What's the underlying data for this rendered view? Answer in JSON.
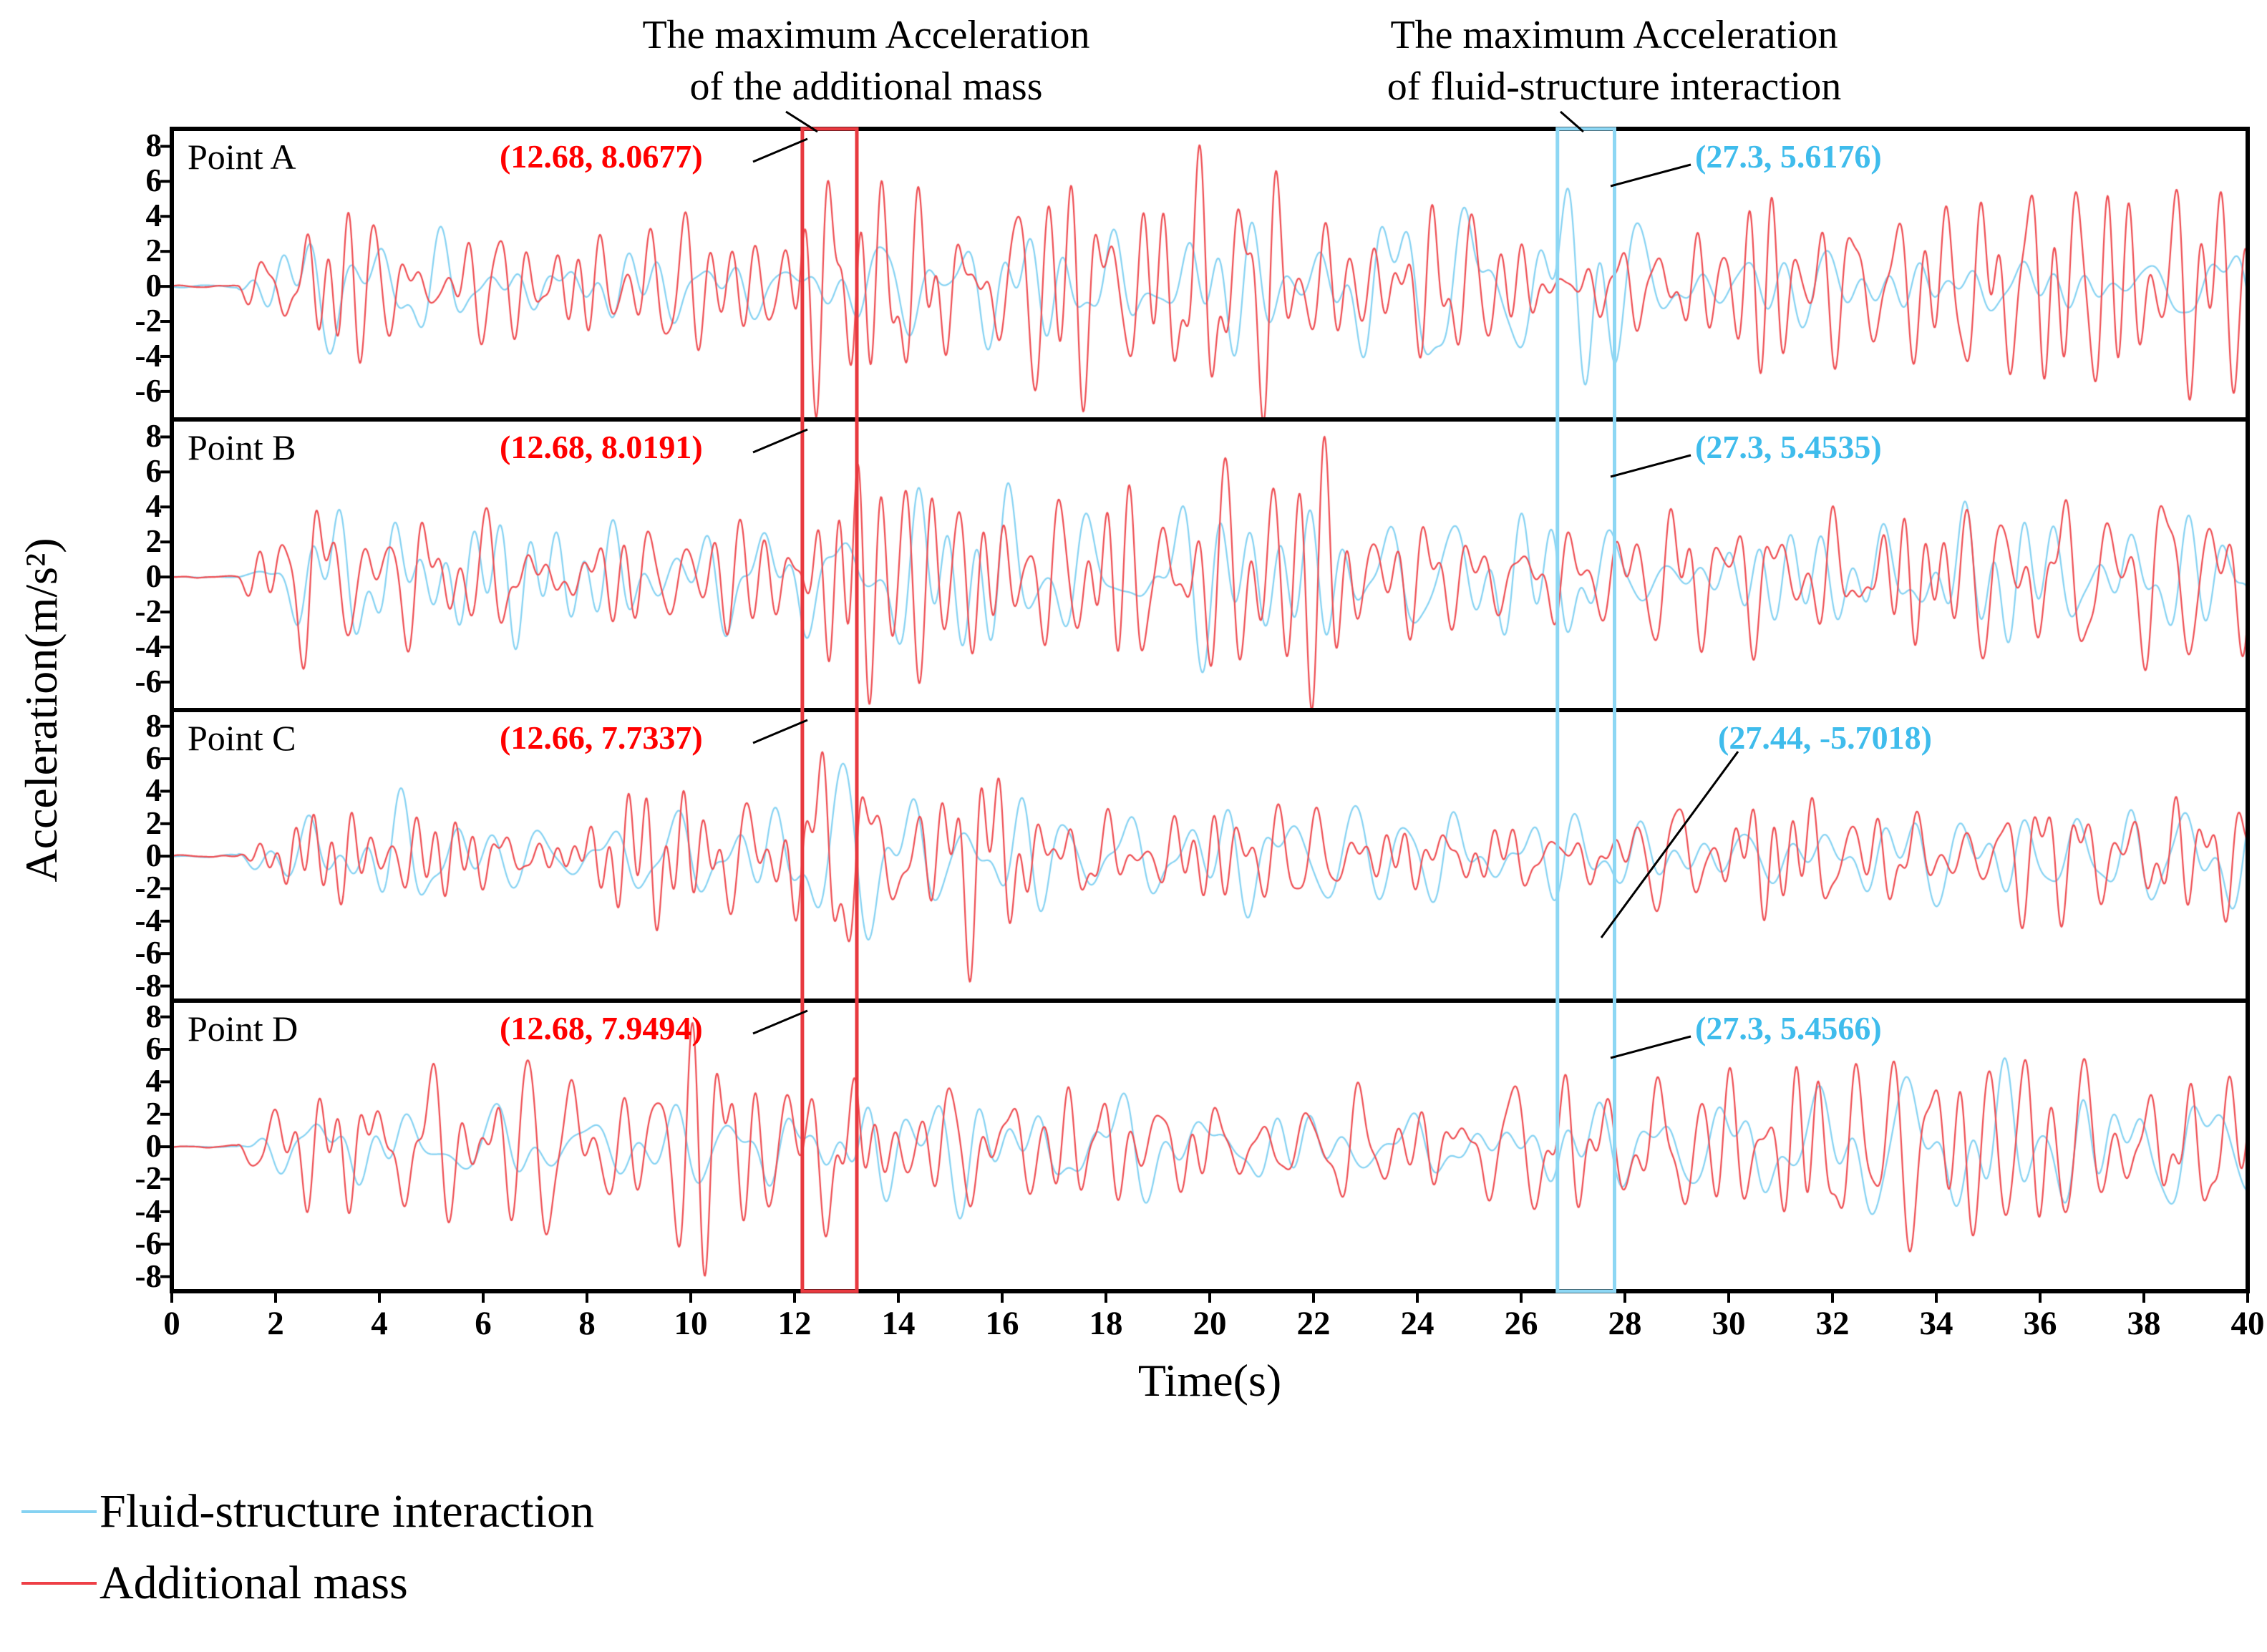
{
  "annotations": {
    "title_additional": "The maximum Acceleration\nof the additional mass",
    "title_fsi": "The maximum Acceleration\nof fluid-structure interaction"
  },
  "colors": {
    "blue_line": "#85d2f2",
    "red_line": "#ee4d52",
    "blue_text": "#3fbcec",
    "red_text": "#ff0000",
    "blue_box": "#8dd7f4",
    "red_box": "#e8393f",
    "axis": "#000000"
  },
  "legend": {
    "items": [
      {
        "label": "Fluid-structure interaction",
        "color": "#85d2f2"
      },
      {
        "label": "Additional mass",
        "color": "#ee3f46"
      }
    ]
  },
  "chart_data": {
    "type": "line",
    "title": "",
    "xlabel": "Time(s)",
    "ylabel": "Acceleration(m/s²)",
    "x_range": [
      0,
      40
    ],
    "xticks": [
      0,
      2,
      4,
      6,
      8,
      10,
      12,
      14,
      16,
      18,
      20,
      22,
      24,
      26,
      28,
      30,
      32,
      34,
      36,
      38,
      40
    ],
    "grid": false,
    "legend": [
      "Fluid-structure interaction",
      "Additional mass"
    ],
    "legend_position": "bottom-left",
    "note": "Four stacked seismic-style acceleration time histories (Points A–D) comparing fluid-structure interaction vs additional-mass models; traces are dense broadband signals (~0 until 1.3 s, then sustained oscillation to 40 s). Exact samples unresolvable; key annotated extrema listed per panel. Regions around t=12.68 s (red box) and t=27.3 s (blue box) are highlighted across all panels.",
    "highlighted_regions": [
      {
        "name": "maximum-of-additional-mass",
        "x0": 12.15,
        "x1": 13.2,
        "color": "#e8393f",
        "label": "The maximum Acceleration of the additional mass"
      },
      {
        "name": "maximum-of-fluid-structure-interaction",
        "x0": 26.7,
        "x1": 27.8,
        "color": "#8dd7f4",
        "label": "The maximum Acceleration of fluid-structure interaction"
      }
    ],
    "panels": [
      {
        "label": "Point A",
        "ylim": [
          -7.6,
          9
        ],
        "yticks": [
          8,
          6,
          4,
          2,
          0,
          -2,
          -4,
          -6
        ],
        "series": [
          {
            "name": "Fluid-structure interaction",
            "color": "#85d2f2",
            "max_point": {
              "x": 27.3,
              "y": 5.6176
            },
            "annotation": "(27.3, 5.6176)"
          },
          {
            "name": "Additional mass",
            "color": "#ee4d52",
            "max_point": {
              "x": 12.68,
              "y": 8.0677
            },
            "annotation": "(12.68, 8.0677)"
          }
        ]
      },
      {
        "label": "Point B",
        "ylim": [
          -7.6,
          9
        ],
        "yticks": [
          8,
          6,
          4,
          2,
          0,
          -2,
          -4,
          -6
        ],
        "series": [
          {
            "name": "Fluid-structure interaction",
            "color": "#85d2f2",
            "max_point": {
              "x": 27.3,
              "y": 5.4535
            },
            "annotation": "(27.3, 5.4535)"
          },
          {
            "name": "Additional mass",
            "color": "#ee4d52",
            "max_point": {
              "x": 12.68,
              "y": 8.0191
            },
            "annotation": "(12.68, 8.0191)"
          }
        ]
      },
      {
        "label": "Point C",
        "ylim": [
          -8.9,
          9
        ],
        "yticks": [
          8,
          6,
          4,
          2,
          0,
          -2,
          -4,
          -6,
          -8
        ],
        "series": [
          {
            "name": "Fluid-structure interaction",
            "color": "#85d2f2",
            "max_point": {
              "x": 27.44,
              "y": -5.7018
            },
            "annotation": "(27.44, -5.7018)"
          },
          {
            "name": "Additional mass",
            "color": "#ee4d52",
            "max_point": {
              "x": 12.66,
              "y": 7.7337
            },
            "annotation": "(12.66, 7.7337)"
          }
        ]
      },
      {
        "label": "Point D",
        "ylim": [
          -8.9,
          9
        ],
        "yticks": [
          8,
          6,
          4,
          2,
          0,
          -2,
          -4,
          -6,
          -8
        ],
        "series": [
          {
            "name": "Fluid-structure interaction",
            "color": "#85d2f2",
            "max_point": {
              "x": 27.3,
              "y": 5.4566
            },
            "annotation": "(27.3, 5.4566)"
          },
          {
            "name": "Additional mass",
            "color": "#ee4d52",
            "max_point": {
              "x": 12.68,
              "y": 7.9494
            },
            "annotation": "(12.68, 7.9494)"
          }
        ]
      }
    ]
  }
}
